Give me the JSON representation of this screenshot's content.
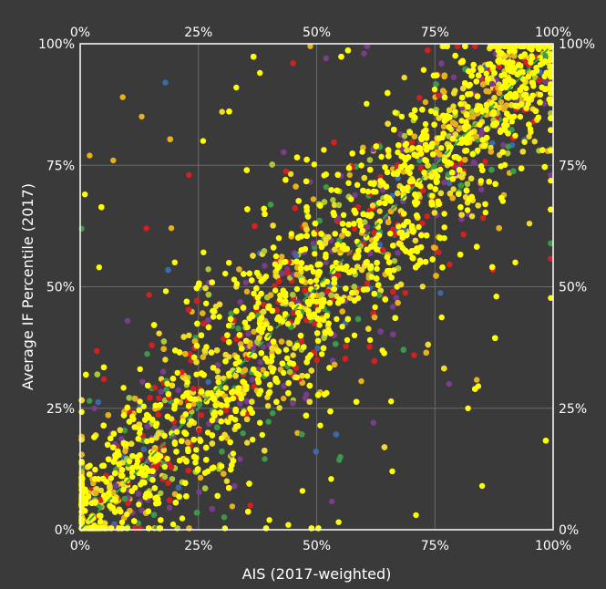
{
  "chart_data": {
    "type": "scatter",
    "title": "",
    "xlabel": "AIS (2017-weighted)",
    "ylabel": "Average IF Percentile (2017)",
    "xlim": [
      0,
      100
    ],
    "ylim": [
      0,
      100
    ],
    "x_ticks": [
      0,
      25,
      50,
      75,
      100
    ],
    "y_ticks": [
      0,
      25,
      50,
      75,
      100
    ],
    "x_tick_labels": [
      "0%",
      "25%",
      "50%",
      "75%",
      "100%"
    ],
    "y_tick_labels": [
      "0%",
      "25%",
      "50%",
      "75%",
      "100%"
    ],
    "grid": true,
    "mirror_axes_on_top_and_right": true,
    "reference_line": {
      "style": "dashed",
      "color": "#2ea84a",
      "from": [
        0,
        0
      ],
      "to": [
        100,
        100
      ]
    },
    "background_color": "#3a3a3a",
    "plot_background_color": "#3a3a3a",
    "point_colors": [
      "#ffff00",
      "#f0dc28",
      "#e8b01a",
      "#d62020",
      "#7a3d8c",
      "#3a9a4a",
      "#a8c838",
      "#3a6aa8"
    ],
    "point_color_weights": [
      0.46,
      0.14,
      0.1,
      0.1,
      0.09,
      0.05,
      0.04,
      0.02
    ],
    "series": [
      {
        "values_summary": "roughly 8000 journals; points scattered along the diagonal, spread around the line ±15 percentile points with outliers",
        "points": [
          [
            2,
            77
          ],
          [
            1,
            69
          ],
          [
            9,
            89
          ],
          [
            18,
            92
          ],
          [
            13,
            85
          ],
          [
            7,
            76
          ],
          [
            4,
            54
          ],
          [
            10,
            43
          ],
          [
            5,
            31
          ],
          [
            3,
            25
          ],
          [
            14,
            62
          ],
          [
            20,
            55
          ],
          [
            23,
            73
          ],
          [
            26,
            80
          ],
          [
            30,
            86
          ],
          [
            33,
            91
          ],
          [
            38,
            94
          ],
          [
            45,
            96
          ],
          [
            52,
            97
          ],
          [
            60,
            98
          ],
          [
            27,
            20
          ],
          [
            31,
            10
          ],
          [
            36,
            5
          ],
          [
            40,
            2
          ],
          [
            44,
            1
          ],
          [
            47,
            8
          ],
          [
            55,
            15
          ],
          [
            62,
            22
          ],
          [
            66,
            12
          ],
          [
            71,
            3
          ],
          [
            78,
            30
          ],
          [
            82,
            25
          ],
          [
            85,
            9
          ],
          [
            88,
            48
          ],
          [
            92,
            55
          ],
          [
            95,
            63
          ],
          [
            97,
            78
          ],
          [
            99,
            99
          ],
          [
            98,
            97
          ],
          [
            96,
            94
          ],
          [
            50,
            50
          ],
          [
            48,
            46
          ],
          [
            52,
            55
          ],
          [
            55,
            57
          ],
          [
            45,
            42
          ],
          [
            40,
            38
          ],
          [
            60,
            61
          ],
          [
            65,
            64
          ],
          [
            70,
            72
          ],
          [
            75,
            74
          ],
          [
            35,
            36
          ],
          [
            30,
            28
          ],
          [
            25,
            27
          ],
          [
            20,
            18
          ],
          [
            15,
            16
          ],
          [
            10,
            9
          ],
          [
            5,
            6
          ],
          [
            80,
            80
          ],
          [
            85,
            86
          ],
          [
            90,
            91
          ],
          [
            42,
            60
          ],
          [
            58,
            40
          ],
          [
            62,
            78
          ],
          [
            38,
            22
          ],
          [
            72,
            55
          ],
          [
            28,
            45
          ],
          [
            68,
            85
          ],
          [
            32,
            15
          ],
          [
            82,
            65
          ],
          [
            18,
            35
          ],
          [
            87,
            93
          ],
          [
            13,
            4
          ],
          [
            57,
            73
          ],
          [
            43,
            27
          ],
          [
            77,
            60
          ],
          [
            23,
            40
          ],
          [
            67,
            50
          ],
          [
            33,
            50
          ],
          [
            73,
            88
          ],
          [
            27,
            12
          ]
        ]
      }
    ]
  }
}
